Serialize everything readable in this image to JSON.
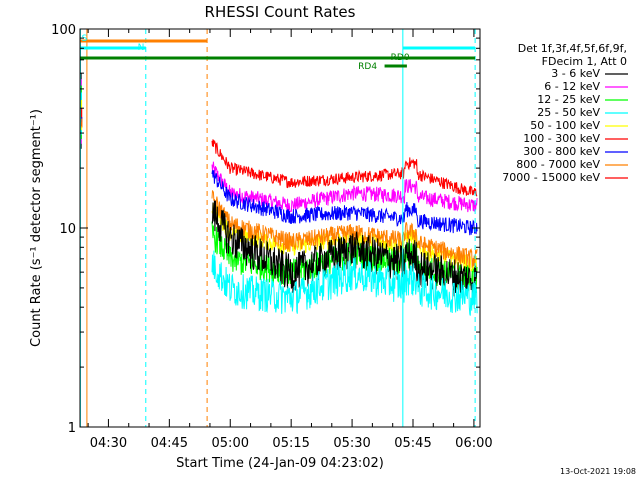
{
  "chart_data": {
    "type": "line",
    "title": "RHESSI Count Rates",
    "xlabel": "Start Time (24-Jan-09 04:23:02)",
    "ylabel": "Count Rate (s⁻¹ detector segment⁻¹)",
    "y_scale": "log",
    "ylim": [
      1,
      100
    ],
    "y_ticks": [
      "1",
      "10",
      "100"
    ],
    "x_ticks": [
      "04:30",
      "04:45",
      "05:00",
      "05:15",
      "05:30",
      "05:45",
      "06:00"
    ],
    "x_tick_minutes": [
      7,
      22,
      37,
      52,
      67,
      82,
      97
    ],
    "xlim_minutes": [
      0,
      98.5
    ],
    "data_gap_minutes": [
      0.5,
      32.5
    ],
    "grid": false,
    "legend_header": [
      "Det 1f,3f,4f,5f,6f,9f,",
      "FDecim 1, Att 0"
    ],
    "series": [
      {
        "name": "3 - 6 keV",
        "color": "#000000",
        "values_at_ticks": [
          null,
          null,
          9.0,
          6.0,
          8.0,
          6.5,
          5.5
        ]
      },
      {
        "name": "6 - 12 keV",
        "color": "#ff00ff",
        "values_at_ticks": [
          null,
          null,
          15.0,
          13.0,
          15.0,
          14.5,
          13.0
        ]
      },
      {
        "name": "12 - 25 keV",
        "color": "#00ff00",
        "values_at_ticks": [
          null,
          null,
          7.0,
          6.0,
          7.5,
          6.5,
          5.5
        ]
      },
      {
        "name": "25 - 50 keV",
        "color": "#00ffff",
        "values_at_ticks": [
          null,
          null,
          5.0,
          4.5,
          6.0,
          5.0,
          4.5
        ]
      },
      {
        "name": "50 - 100 keV",
        "color": "#ffff00",
        "values_at_ticks": [
          null,
          null,
          9.5,
          8.0,
          9.0,
          8.0,
          6.5
        ]
      },
      {
        "name": "100 - 300 keV",
        "color": "#ff0000",
        "values_at_ticks": [
          null,
          null,
          20.0,
          17.0,
          18.0,
          19.0,
          15.0
        ]
      },
      {
        "name": "300 - 800 keV",
        "color": "#0000ff",
        "values_at_ticks": [
          null,
          null,
          14.0,
          11.5,
          12.0,
          11.0,
          10.0
        ]
      },
      {
        "name": "800 - 7000 keV",
        "color": "#ff8000",
        "values_at_ticks": [
          null,
          null,
          10.5,
          8.5,
          9.5,
          8.5,
          7.0
        ]
      },
      {
        "name": "7000 - 15000 keV",
        "color": "#ff0000",
        "values_at_ticks": [
          null,
          null,
          null,
          null,
          null,
          null,
          null
        ]
      }
    ],
    "annotations": [
      {
        "text": "N",
        "color": "#00ffff"
      },
      {
        "text": "RD0",
        "color": "#008000"
      },
      {
        "text": "RD4",
        "color": "#008000"
      },
      {
        "text": "S",
        "color": "#00ffff"
      }
    ],
    "footer": "13-Oct-2021 19:08"
  }
}
